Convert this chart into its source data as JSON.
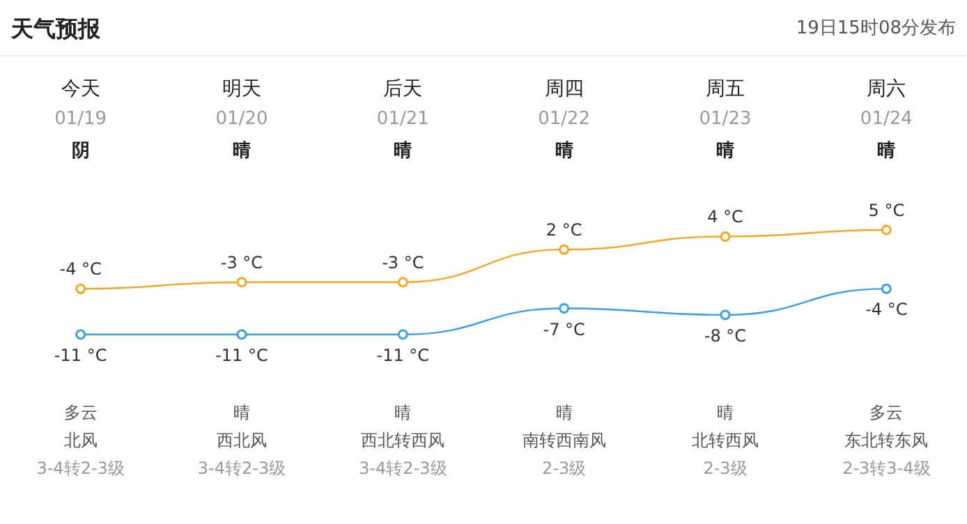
{
  "chart_data": {
    "type": "line",
    "title": "天气预报",
    "subtitle": "19日15时08分发布",
    "categories": [
      "今天",
      "明天",
      "后天",
      "周四",
      "周五",
      "周六"
    ],
    "series": [
      {
        "color": "#f5a623",
        "values": [
          -4,
          -3,
          -3,
          2,
          4,
          5
        ],
        "value_labels": [
          "-4 °C",
          "-3 °C",
          "-3 °C",
          "2 °C",
          "4 °C",
          "5 °C"
        ]
      },
      {
        "color": "#3a9fde",
        "values": [
          -11,
          -11,
          -11,
          -7,
          -8,
          -4
        ],
        "value_labels": [
          "-11 °C",
          "-11 °C",
          "-11 °C",
          "-7 °C",
          "-8 °C",
          "-4 °C"
        ]
      }
    ],
    "annotations": [
      "01/19",
      "01/20",
      "01/21",
      "01/22",
      "01/23",
      "01/24",
      "阴",
      "晴",
      "晴",
      "晴",
      "晴",
      "晴",
      "多云",
      "晴",
      "晴",
      "晴",
      "晴",
      "多云",
      "北风",
      "西北风",
      "西北转西风",
      "南转西南风",
      "北转西风",
      "东北转东风",
      "3-4转2-3级",
      "3-4转2-3级",
      "3-4转2-3级",
      "2-3级",
      "2-3级",
      "2-3转3-4级"
    ],
    "marker": "circle"
  }
}
